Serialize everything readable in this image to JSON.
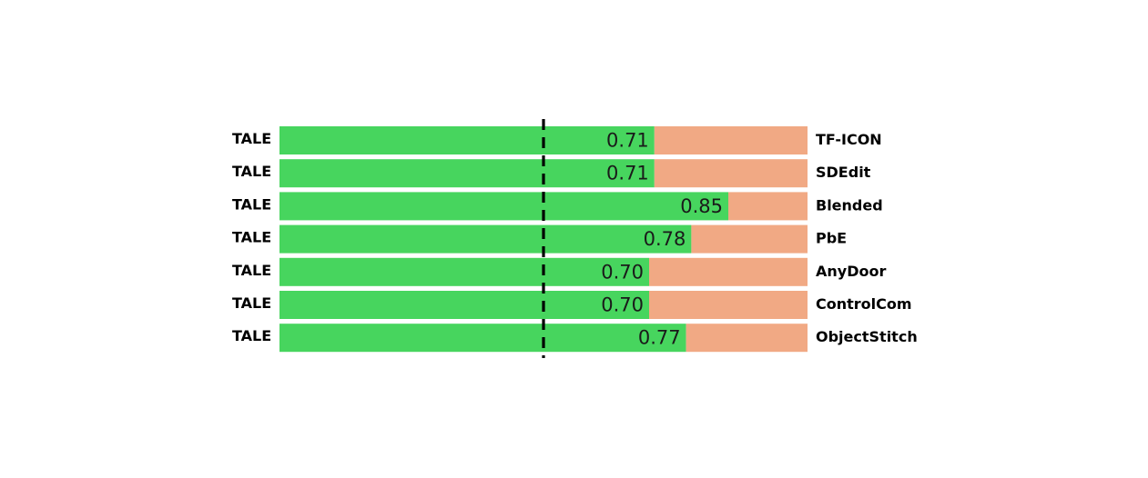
{
  "chart_data": {
    "type": "bar",
    "orientation": "horizontal",
    "stacked": "100%",
    "left_label": "TALE",
    "categories": [
      "TF-ICON",
      "SDEdit",
      "Blended",
      "PbE",
      "AnyDoor",
      "ControlCom",
      "ObjectStitch"
    ],
    "rows": [
      {
        "left": "TALE",
        "right": "TF-ICON",
        "value": 0.71,
        "value_label": "0.71"
      },
      {
        "left": "TALE",
        "right": "SDEdit",
        "value": 0.71,
        "value_label": "0.71"
      },
      {
        "left": "TALE",
        "right": "Blended",
        "value": 0.85,
        "value_label": "0.85"
      },
      {
        "left": "TALE",
        "right": "PbE",
        "value": 0.78,
        "value_label": "0.78"
      },
      {
        "left": "TALE",
        "right": "AnyDoor",
        "value": 0.7,
        "value_label": "0.70"
      },
      {
        "left": "TALE",
        "right": "ControlCom",
        "value": 0.7,
        "value_label": "0.70"
      },
      {
        "left": "TALE",
        "right": "ObjectStitch",
        "value": 0.77,
        "value_label": "0.77"
      }
    ],
    "xlim": [
      0,
      1
    ],
    "reference_line": 0.5,
    "grid": false,
    "colors": {
      "tale": "#47d55e",
      "other": "#f1a984",
      "reference_line": "#000000"
    }
  }
}
